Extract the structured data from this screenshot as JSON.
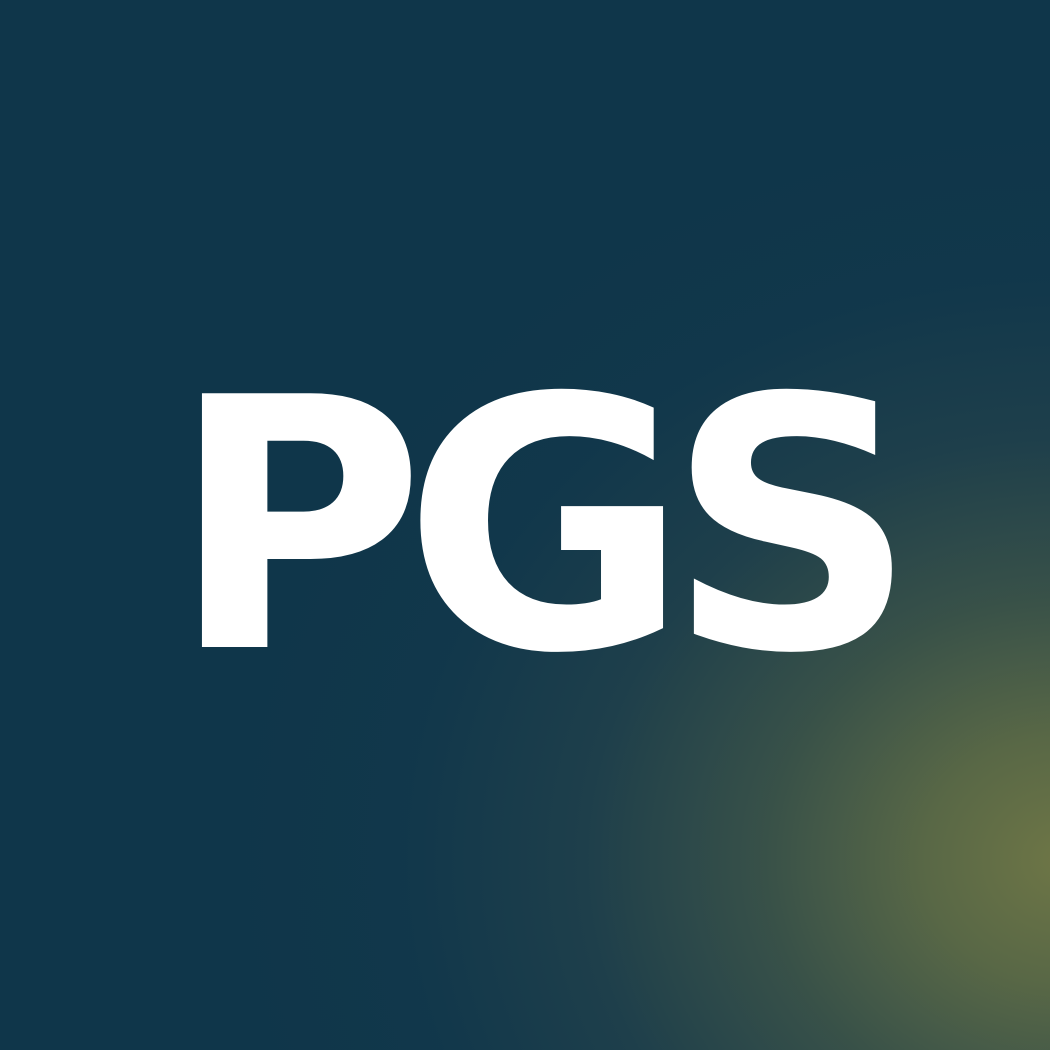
{
  "logo": {
    "text": "PGS",
    "text_color": "#ffffff",
    "background_colors": [
      "#0f364a",
      "#6e7646"
    ]
  }
}
